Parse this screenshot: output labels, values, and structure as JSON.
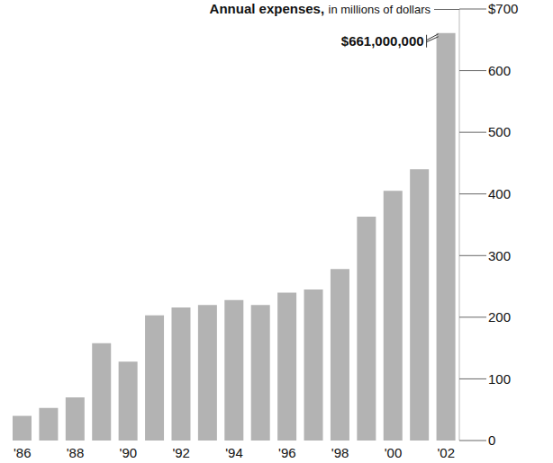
{
  "chart_data": {
    "type": "bar",
    "title": "Annual expenses,",
    "subtitle": "in millions of dollars",
    "categories": [
      "'86",
      null,
      "'88",
      null,
      "'90",
      null,
      "'92",
      null,
      "'94",
      null,
      "'96",
      null,
      "'98",
      null,
      "'00",
      null,
      "'02"
    ],
    "values": [
      40,
      53,
      70,
      158,
      128,
      203,
      216,
      220,
      228,
      220,
      240,
      245,
      278,
      363,
      405,
      440,
      661
    ],
    "color": "#b3b3b3",
    "ylim": [
      0,
      700
    ],
    "yticks": [
      0,
      100,
      200,
      300,
      400,
      500,
      600,
      {
        "value": 700,
        "label": "$700"
      }
    ],
    "grid": false,
    "annotations": [
      {
        "text": "$661,000,000",
        "index": 16
      }
    ]
  }
}
